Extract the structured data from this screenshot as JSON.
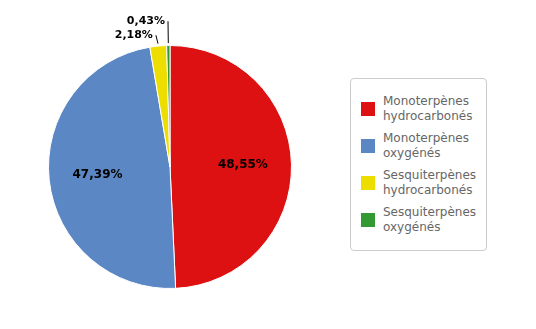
{
  "chart_data": {
    "type": "pie",
    "categories": [
      "Monoterpènes\nhydrocarbonés",
      "Monoterpènes\noxygénés",
      "Sesquiterpènes\nhydrocarbonés",
      "Sesquiterpènes\noxygénés"
    ],
    "values": [
      48.55,
      47.39,
      2.18,
      0.43
    ],
    "value_labels": [
      "48,55%",
      "47,39%",
      "2,18%",
      "0,43%"
    ],
    "colors": [
      "#dd1111",
      "#5b87c5",
      "#eedd00",
      "#339933"
    ],
    "data_labels": true,
    "legend": "right"
  }
}
